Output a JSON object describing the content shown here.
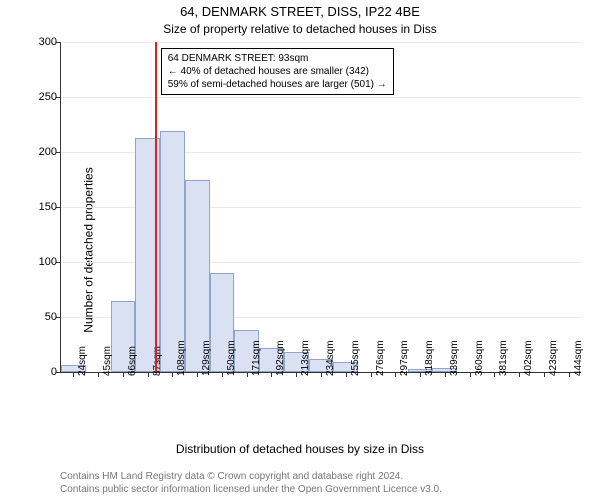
{
  "title": "64, DENMARK STREET, DISS, IP22 4BE",
  "subtitle": "Size of property relative to detached houses in Diss",
  "ylabel": "Number of detached properties",
  "xlabel": "Distribution of detached houses by size in Diss",
  "credit": "Contains HM Land Registry data © Crown copyright and database right 2024.\nContains public sector information licensed under the Open Government Licence v3.0.",
  "chart": {
    "type": "histogram",
    "ylim": [
      0,
      300
    ],
    "ytick_step": 50,
    "background_color": "#ffffff",
    "grid_color": "#eaeaea",
    "bar_fill": "#d9e1f2",
    "bar_border": "#92a4c8",
    "axis_color": "#333333",
    "marker_color": "#e02020",
    "marker_x": 93,
    "x_start": 24,
    "x_step": 21,
    "x_unit": "sqm",
    "title_fontsize": 13,
    "subtitle_fontsize": 12,
    "label_fontsize": 12,
    "tick_fontsize": 11,
    "values": [
      6,
      0,
      65,
      213,
      219,
      175,
      90,
      38,
      22,
      18,
      12,
      9,
      0,
      0,
      3,
      4,
      0,
      0,
      0,
      0,
      0
    ]
  },
  "info_box": {
    "line1": "64 DENMARK STREET: 93sqm",
    "line2": "← 40% of detached houses are smaller (342)",
    "line3": "59% of semi-detached houses are larger (501) →"
  }
}
